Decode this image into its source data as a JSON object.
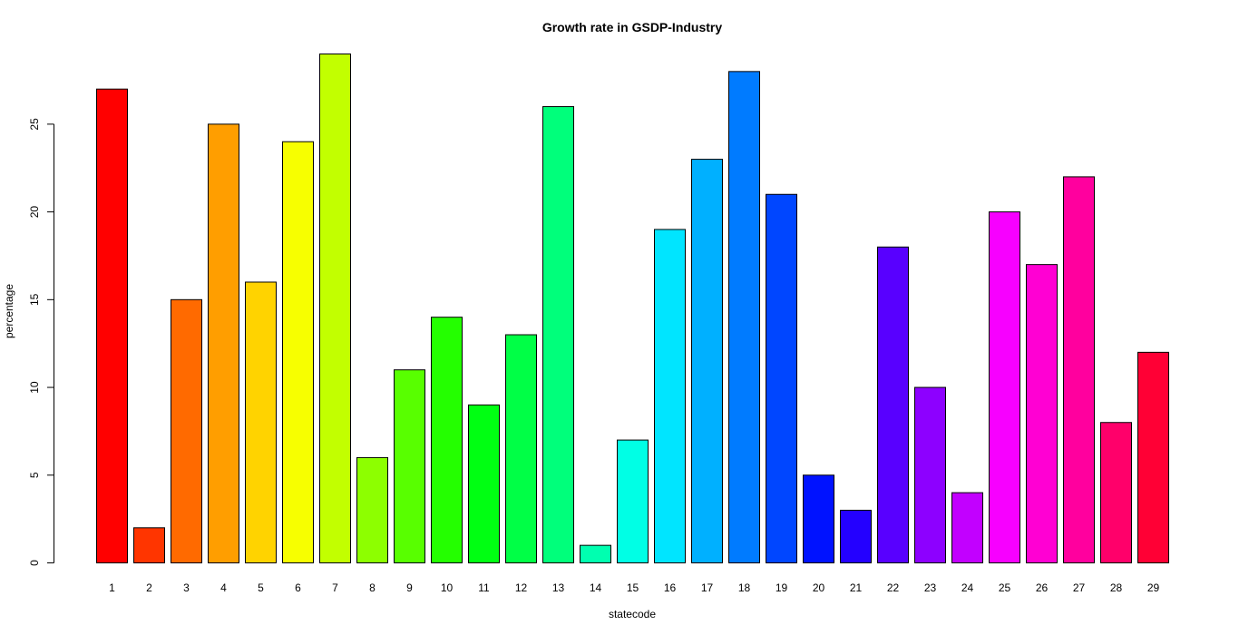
{
  "chart_data": {
    "type": "bar",
    "title": "Growth rate in GSDP-Industry",
    "xlabel": "statecode",
    "ylabel": "percentage",
    "categories": [
      "1",
      "2",
      "3",
      "4",
      "5",
      "6",
      "7",
      "8",
      "9",
      "10",
      "11",
      "12",
      "13",
      "14",
      "15",
      "16",
      "17",
      "18",
      "19",
      "20",
      "21",
      "22",
      "23",
      "24",
      "25",
      "26",
      "27",
      "28",
      "29"
    ],
    "values": [
      27,
      2,
      15,
      25,
      16,
      24,
      29,
      6,
      11,
      14,
      9,
      13,
      26,
      1,
      7,
      19,
      23,
      28,
      21,
      5,
      3,
      18,
      10,
      4,
      20,
      17,
      22,
      8,
      12
    ],
    "ylim": [
      0,
      29
    ],
    "yticks": [
      0,
      5,
      10,
      15,
      20,
      25
    ],
    "grid": false,
    "legend": "none",
    "colors": [
      "#FF0000",
      "#FF3500",
      "#FF6A00",
      "#FF9E00",
      "#FFD300",
      "#F7FF00",
      "#C2FF00",
      "#8DFF00",
      "#58FF00",
      "#24FF00",
      "#00FF12",
      "#00FF46",
      "#00FF7B",
      "#00FFB0",
      "#00FFE5",
      "#00E5FF",
      "#00B0FF",
      "#007BFF",
      "#0046FF",
      "#0012FF",
      "#2400FF",
      "#5800FF",
      "#8D00FF",
      "#C200FF",
      "#F700FF",
      "#FF00D3",
      "#FF009E",
      "#FF006A",
      "#FF0035"
    ]
  }
}
